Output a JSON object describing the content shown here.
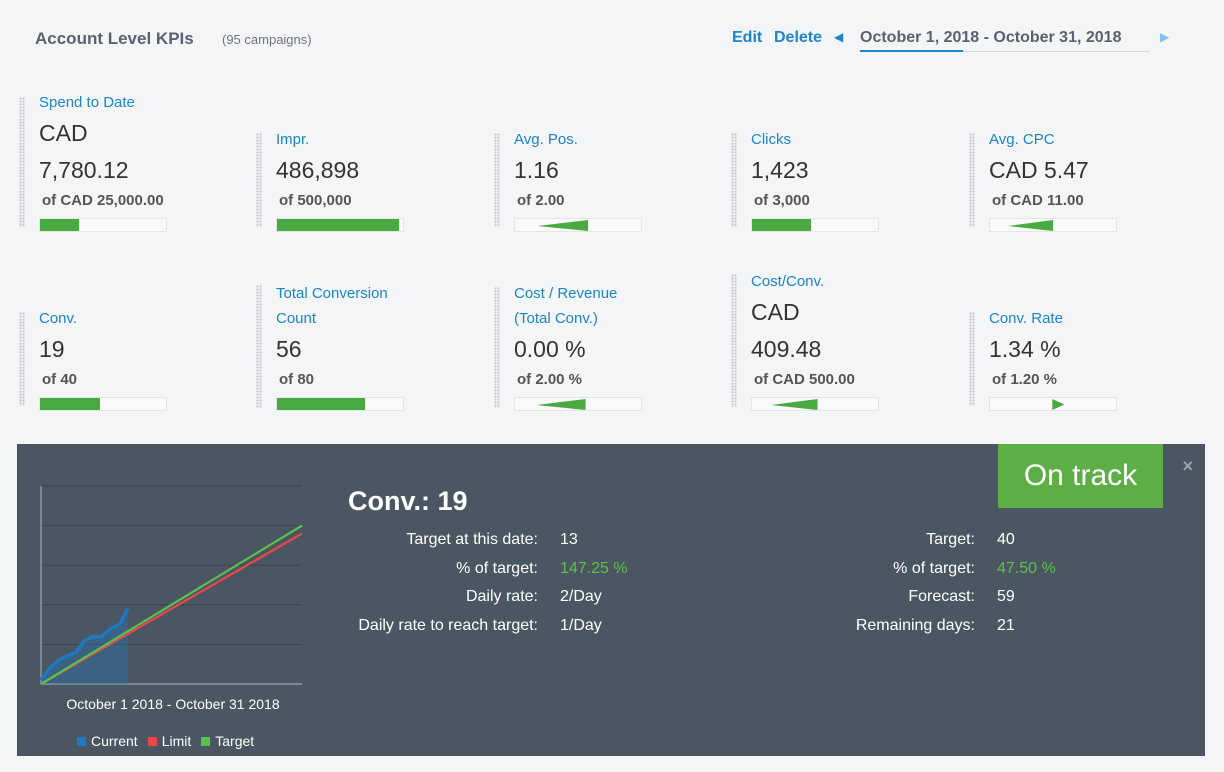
{
  "header": {
    "title": "Account Level KPIs",
    "subtitle": "(95 campaigns)",
    "edit": "Edit",
    "delete": "Delete",
    "prev_icon": "◀",
    "date_range": "October 1, 2018 - October 31, 2018",
    "next_icon": "▶"
  },
  "kpis": [
    {
      "label": "Spend to Date",
      "value_line1": "CAD",
      "value": "7,780.12",
      "target": "of CAD 25,000.00",
      "progress": 0.31,
      "indicator": "bar"
    },
    {
      "label": "Impr.",
      "value": "486,898",
      "target": "of 500,000",
      "progress": 0.97,
      "indicator": "bar"
    },
    {
      "label": "Avg. Pos.",
      "value": "1.16",
      "target": "of 2.00",
      "progress": 0.58,
      "indicator": "triangle-left"
    },
    {
      "label": "Clicks",
      "value": "1,423",
      "target": "of 3,000",
      "progress": 0.47,
      "indicator": "bar"
    },
    {
      "label": "Avg. CPC",
      "value": "CAD 5.47",
      "target": "of CAD 11.00",
      "progress": 0.5,
      "indicator": "triangle-left"
    },
    {
      "label": "Conv.",
      "value": "19",
      "target": "of 40",
      "progress": 0.475,
      "indicator": "bar"
    },
    {
      "label_line1": "Total Conversion",
      "label": "Count",
      "value": "56",
      "target": "of 80",
      "progress": 0.7,
      "indicator": "bar"
    },
    {
      "label_line1": "Cost / Revenue",
      "label": "(Total Conv.)",
      "value": "0.00 %",
      "target": "of 2.00 %",
      "progress": 0.56,
      "indicator": "triangle-left"
    },
    {
      "label": "Cost/Conv.",
      "value_line1": "CAD",
      "value": "409.48",
      "target": "of CAD 500.00",
      "progress": 0.52,
      "indicator": "triangle-left"
    },
    {
      "label": "Conv. Rate",
      "value": "1.34 %",
      "target": "of 1.20 %",
      "progress": 0.55,
      "indicator": "triangle-right"
    }
  ],
  "panel": {
    "status": "On track",
    "close_icon": "×",
    "title": "Conv.: 19",
    "chart_caption": "October 1 2018 - October 31 2018",
    "legend": [
      {
        "name": "Current",
        "color": "#1f78c1"
      },
      {
        "name": "Limit",
        "color": "#e8484a"
      },
      {
        "name": "Target",
        "color": "#59c14d"
      }
    ],
    "left_stats": [
      {
        "key": "Target at this date:",
        "value": "13"
      },
      {
        "key": "% of target:",
        "value": "147.25 %",
        "highlight": true
      },
      {
        "key": "Daily rate:",
        "value": "2/Day"
      },
      {
        "key": "Daily rate to reach target:",
        "value": "1/Day"
      }
    ],
    "right_stats": [
      {
        "key": "Target:",
        "value": "40"
      },
      {
        "key": "% of target:",
        "value": "47.50 %",
        "highlight": true
      },
      {
        "key": "Forecast:",
        "value": "59"
      },
      {
        "key": "Remaining days:",
        "value": "21"
      }
    ]
  },
  "chart_data": {
    "type": "line",
    "xlabel": "October 1 2018 - October 31 2018",
    "x": [
      1,
      2,
      3,
      4,
      5,
      6,
      7,
      8,
      9,
      10,
      11
    ],
    "series": [
      {
        "name": "Current",
        "values": [
          1,
          4,
          6,
          7,
          8,
          11,
          12,
          12,
          14,
          15,
          19
        ]
      },
      {
        "name": "Limit",
        "x": [
          1,
          31
        ],
        "values": [
          0,
          38
        ]
      },
      {
        "name": "Target",
        "x": [
          1,
          31
        ],
        "values": [
          0,
          40
        ]
      }
    ],
    "xlim": [
      1,
      31
    ],
    "ylim": [
      0,
      50
    ],
    "grid": true,
    "legend_position": "bottom"
  },
  "colors": {
    "accent": "#1a85c8",
    "progress": "#4aaa42",
    "panel_bg": "#4b5663",
    "on_track": "#5daf45",
    "positive": "#5ec04a"
  }
}
